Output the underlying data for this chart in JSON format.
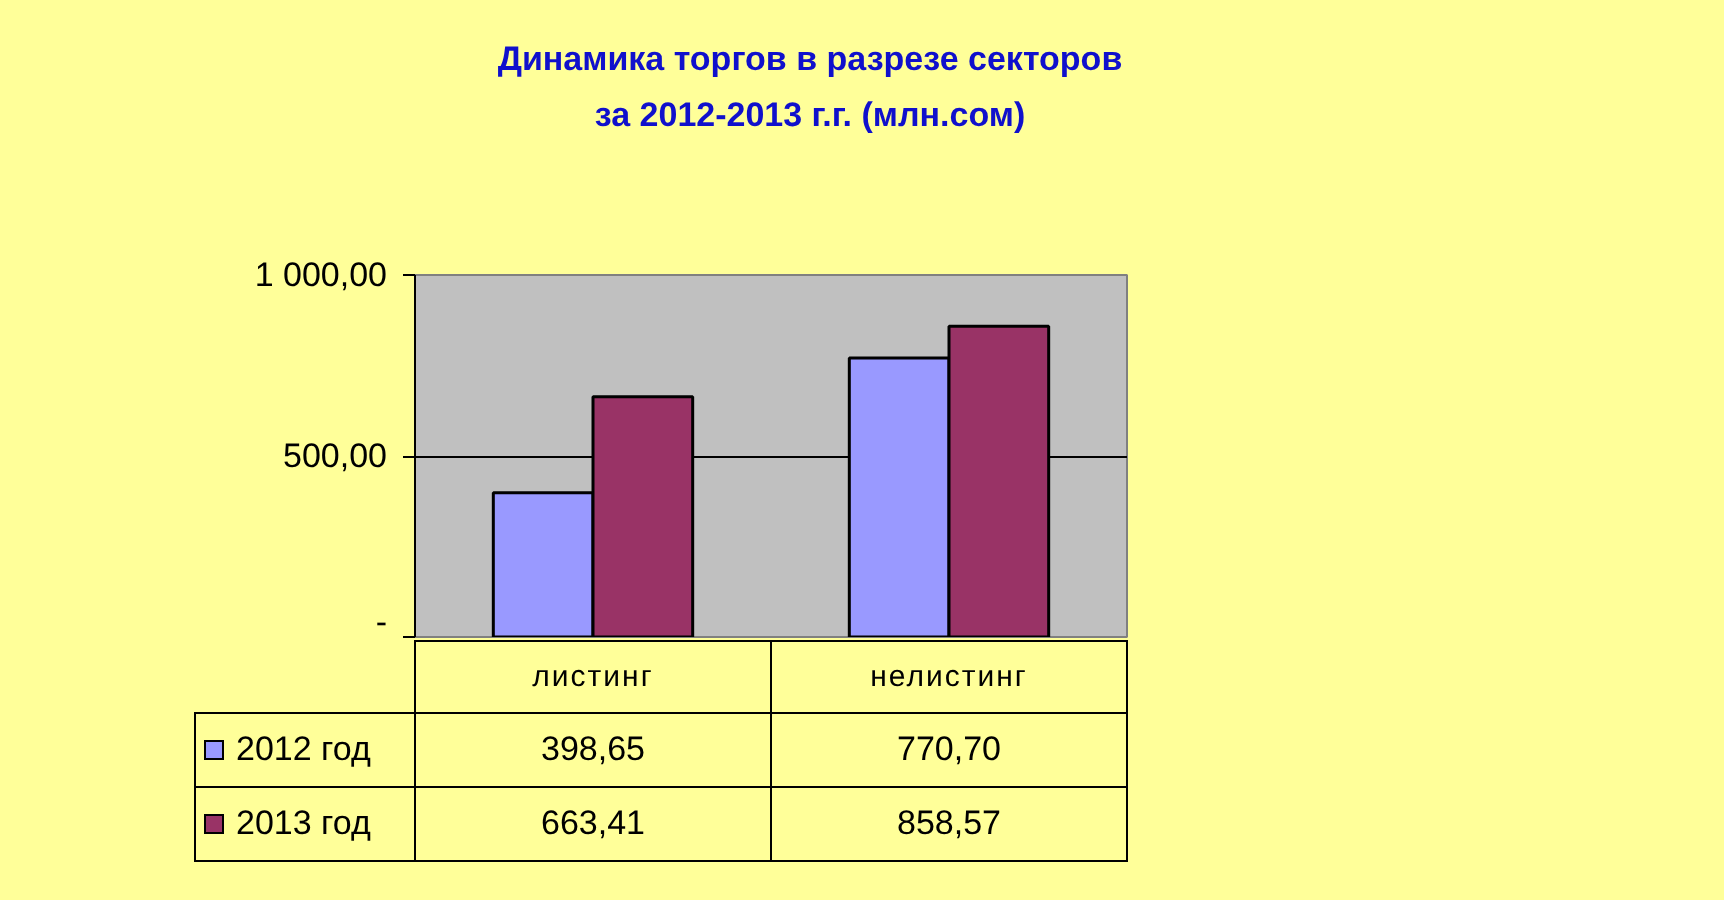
{
  "chart_data": {
    "type": "bar",
    "title": "Динамика торгов в разрезе секторов\nза 2012-2013 г.г. (млн.сом)",
    "categories": [
      "листинг",
      "нелистинг"
    ],
    "series": [
      {
        "name": "2012 год",
        "color": "#9999ff",
        "values": [
          398.65,
          770.7
        ],
        "value_labels": [
          "398,65",
          "770,70"
        ]
      },
      {
        "name": "2013 год",
        "color": "#993366",
        "values": [
          663.41,
          858.57
        ],
        "value_labels": [
          "663,41",
          "858,57"
        ]
      }
    ],
    "ylim": [
      0,
      1000
    ],
    "yticks": [
      {
        "value": 0,
        "label": "-"
      },
      {
        "value": 500,
        "label": "500,00"
      },
      {
        "value": 1000,
        "label": "1 000,00"
      }
    ],
    "grid": "y",
    "legend": "bottom"
  }
}
